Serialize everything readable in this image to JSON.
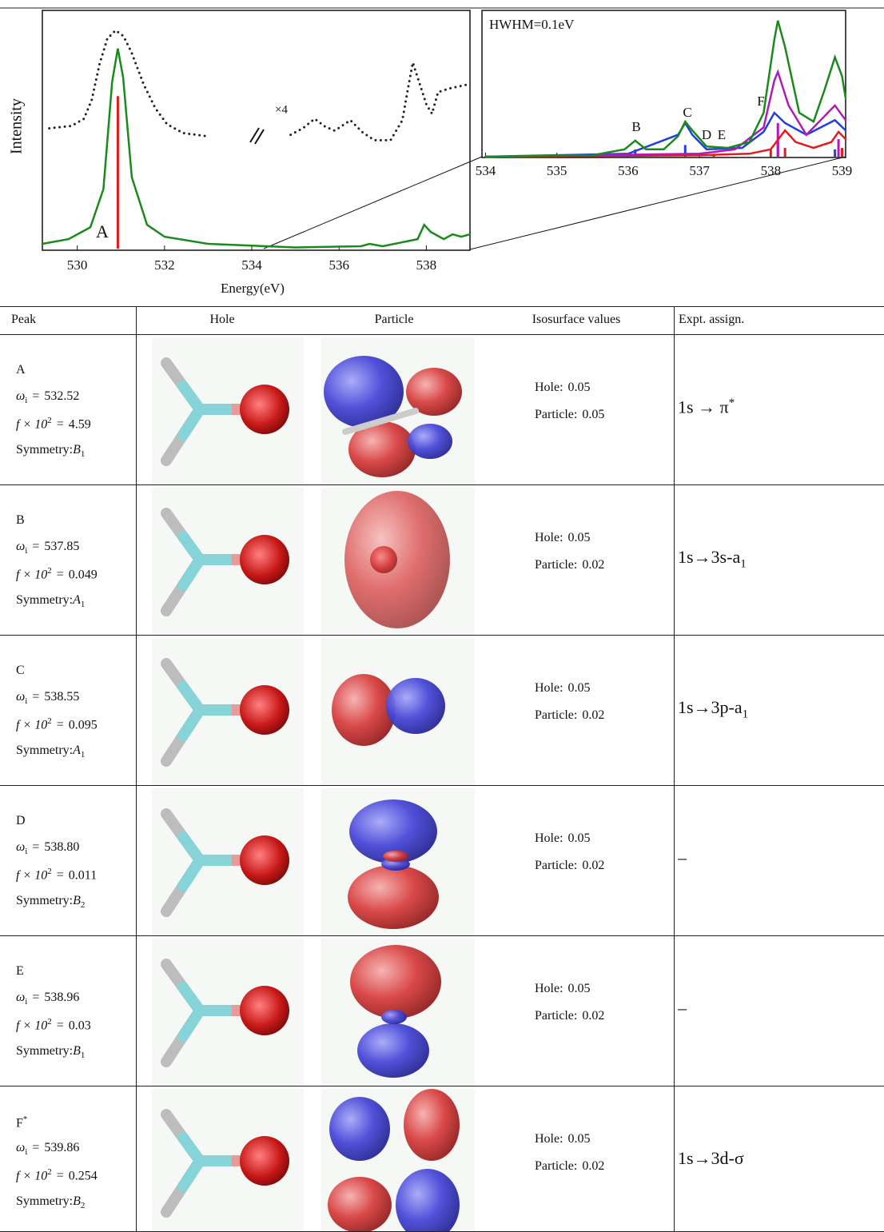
{
  "chart_data": [
    {
      "type": "line",
      "x_label": "Energy(eV)",
      "y_label": "Intensity",
      "xlim": [
        529.2,
        539.0
      ],
      "xticks": [
        530,
        532,
        534,
        536,
        538
      ],
      "ylim": [
        0,
        1
      ],
      "annotations": [
        "A",
        "×4"
      ],
      "series": [
        {
          "color": "#1a8a1a",
          "style": "solid",
          "x": [
            529.2,
            529.8,
            530.3,
            530.6,
            530.8,
            530.93,
            531.05,
            531.25,
            531.6,
            532.0,
            533.0,
            535.0,
            536.5,
            536.7,
            537.0,
            537.8,
            537.95,
            538.1,
            538.4,
            538.6,
            538.8,
            539.0
          ],
          "values": [
            0.02,
            0.04,
            0.09,
            0.25,
            0.7,
            0.84,
            0.72,
            0.3,
            0.1,
            0.05,
            0.02,
            0.005,
            0.01,
            0.02,
            0.01,
            0.04,
            0.1,
            0.07,
            0.04,
            0.06,
            0.05,
            0.06
          ]
        },
        {
          "color": "#222222",
          "style": "dotted",
          "x": [
            529.36,
            529.87,
            530.15,
            530.33,
            530.51,
            530.69,
            530.88,
            531.06,
            531.24,
            531.52,
            531.79,
            532.06,
            532.43,
            533.01,
            534.0,
            534.89,
            535.17,
            535.44,
            535.68,
            535.9,
            536.26,
            536.54,
            536.81,
            537.18,
            537.45,
            537.58,
            537.69,
            537.82,
            538.0,
            538.13,
            538.27,
            538.55,
            538.97
          ],
          "values": [
            0.505,
            0.515,
            0.545,
            0.623,
            0.774,
            0.882,
            0.916,
            0.892,
            0.825,
            0.69,
            0.589,
            0.522,
            0.485,
            0.471,
            null,
            0.478,
            0.505,
            0.545,
            0.512,
            0.495,
            0.539,
            0.488,
            0.455,
            0.455,
            0.539,
            0.673,
            0.781,
            0.707,
            0.606,
            0.566,
            0.657,
            0.673,
            0.69
          ]
        }
      ],
      "sticks": [
        {
          "color": "#e41a1c",
          "x": [
            530.93
          ],
          "values": [
            0.64
          ]
        }
      ]
    },
    {
      "type": "line",
      "annotation": "HWHM=0.1eV",
      "peak_labels": [
        "B",
        "C",
        "D",
        "E",
        "F"
      ],
      "xlim": [
        533.95,
        539.05
      ],
      "xticks": [
        534,
        535,
        536,
        537,
        538,
        539
      ],
      "ylim": [
        0,
        1
      ],
      "series": [
        {
          "color": "#e41a1c",
          "style": "solid",
          "x": [
            534.0,
            537.0,
            537.7,
            538.0,
            538.2,
            538.35,
            538.6,
            538.85,
            538.95,
            539.05
          ],
          "values": [
            0.0,
            0.01,
            0.02,
            0.05,
            0.18,
            0.1,
            0.06,
            0.1,
            0.17,
            0.12
          ]
        },
        {
          "color": "#1f3fe0",
          "style": "solid",
          "x": [
            534.0,
            536.0,
            536.7,
            536.8,
            536.9,
            537.1,
            537.6,
            537.9,
            538.05,
            538.2,
            538.5,
            538.7,
            538.9,
            539.05
          ],
          "values": [
            0.0,
            0.02,
            0.15,
            0.23,
            0.15,
            0.05,
            0.06,
            0.17,
            0.3,
            0.23,
            0.15,
            0.2,
            0.25,
            0.18
          ]
        },
        {
          "color": "#b01ab8",
          "style": "solid",
          "x": [
            534.0,
            537.0,
            537.5,
            537.9,
            538.05,
            538.1,
            538.25,
            538.5,
            538.7,
            538.9,
            539.05
          ],
          "values": [
            0.0,
            0.02,
            0.05,
            0.2,
            0.52,
            0.58,
            0.35,
            0.15,
            0.25,
            0.35,
            0.25
          ]
        },
        {
          "color": "#1a8a1a",
          "style": "solid",
          "x": [
            534.0,
            535.5,
            535.95,
            536.1,
            536.25,
            536.5,
            536.7,
            536.8,
            536.9,
            537.1,
            537.4,
            537.7,
            537.9,
            538.05,
            538.1,
            538.2,
            538.4,
            538.6,
            538.75,
            538.9,
            539.0,
            539.05
          ],
          "values": [
            0.0,
            0.01,
            0.05,
            0.11,
            0.05,
            0.05,
            0.14,
            0.24,
            0.18,
            0.07,
            0.06,
            0.1,
            0.3,
            0.8,
            0.93,
            0.75,
            0.3,
            0.24,
            0.45,
            0.68,
            0.55,
            0.4
          ]
        }
      ],
      "sticks": [
        {
          "color": "#1f3fe0",
          "x": [
            536.1,
            536.8,
            538.1,
            538.9
          ],
          "values": [
            0.05,
            0.08,
            0.1,
            0.05
          ]
        },
        {
          "color": "#e41a1c",
          "x": [
            537.2,
            538.0,
            538.2,
            539.0
          ],
          "values": [
            0.02,
            0.05,
            0.06,
            0.06
          ]
        },
        {
          "color": "#b01ab8",
          "x": [
            538.1,
            538.95
          ],
          "values": [
            0.23,
            0.12
          ]
        }
      ]
    }
  ],
  "table": {
    "headers": [
      "Peak",
      "Hole",
      "Particle",
      "Isosurface values",
      "Expt. assign."
    ],
    "labels": {
      "omega": "ω",
      "omega_sub": "i",
      "equals": "=",
      "f": "f × 10",
      "f_sup": "2",
      "symmetry": "Symmetry:",
      "hole": "Hole:",
      "particle": "Particle:"
    },
    "rows": [
      {
        "peak": "A",
        "omega": "532.52",
        "f": "4.59",
        "symmetry": "B",
        "symmetry_sub": "1",
        "hole_iso": "0.05",
        "particle_iso": "0.05",
        "assign": "1s → π",
        "assign_sup": "*"
      },
      {
        "peak": "B",
        "omega": "537.85",
        "f": "0.049",
        "symmetry": "A",
        "symmetry_sub": "1",
        "hole_iso": "0.05",
        "particle_iso": "0.02",
        "assign": "1s→3s-a",
        "assign_sub": "1"
      },
      {
        "peak": "C",
        "omega": "538.55",
        "f": "0.095",
        "symmetry": "A",
        "symmetry_sub": "1",
        "hole_iso": "0.05",
        "particle_iso": "0.02",
        "assign": "1s→3p-a",
        "assign_sub": "1"
      },
      {
        "peak": "D",
        "omega": "538.80",
        "f": "0.011",
        "symmetry": "B",
        "symmetry_sub": "2",
        "hole_iso": "0.05",
        "particle_iso": "0.02",
        "assign": "–"
      },
      {
        "peak": "E",
        "omega": "538.96",
        "f": "0.03",
        "symmetry": "B",
        "symmetry_sub": "1",
        "hole_iso": "0.05",
        "particle_iso": "0.02",
        "assign": "–"
      },
      {
        "peak": "F",
        "peak_sup": "*",
        "omega": "539.86",
        "f": "0.254",
        "symmetry": "B",
        "symmetry_sub": "2",
        "hole_iso": "0.05",
        "particle_iso": "0.02",
        "assign": "1s→3d-σ"
      }
    ]
  }
}
